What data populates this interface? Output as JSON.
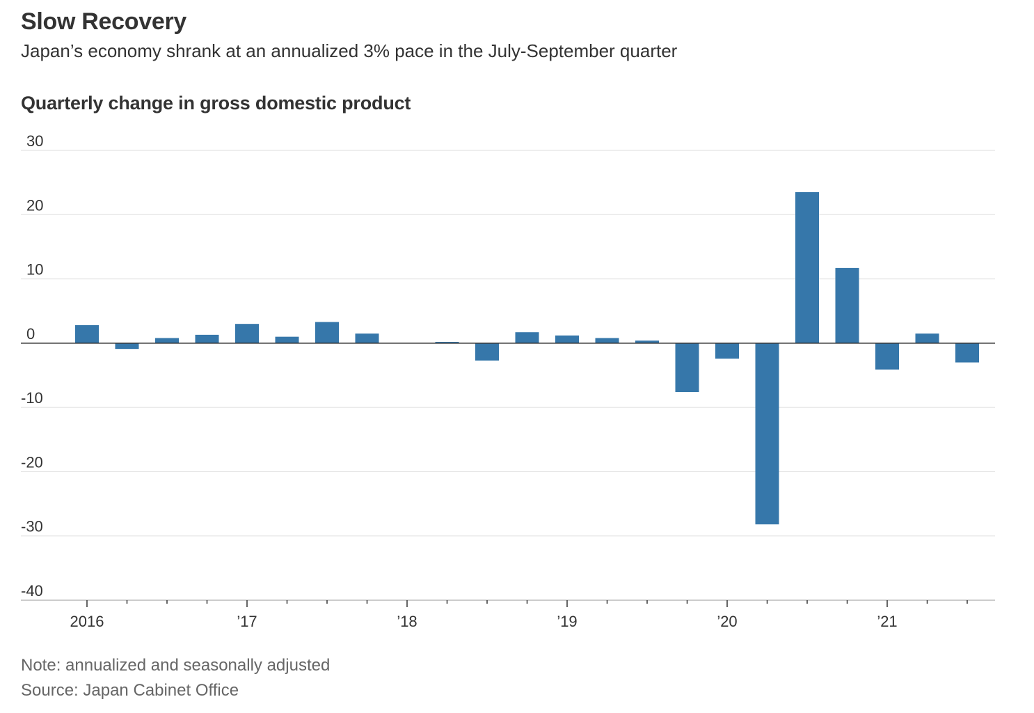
{
  "header": {
    "title": "Slow Recovery",
    "subtitle": "Japan’s economy shrank at an annualized 3% pace in the July-September quarter"
  },
  "chart_data": {
    "type": "bar",
    "title": "Quarterly change in gross domestic product",
    "xlabel": "",
    "ylabel": "",
    "ylim": [
      -40,
      30
    ],
    "yticks": [
      30,
      20,
      10,
      0,
      -10,
      -20,
      -30,
      -40
    ],
    "categories": [
      "2016 Q1",
      "2016 Q2",
      "2016 Q3",
      "2016 Q4",
      "2017 Q1",
      "2017 Q2",
      "2017 Q3",
      "2017 Q4",
      "2018 Q1",
      "2018 Q2",
      "2018 Q3",
      "2018 Q4",
      "2019 Q1",
      "2019 Q2",
      "2019 Q3",
      "2019 Q4",
      "2020 Q1",
      "2020 Q2",
      "2020 Q3",
      "2020 Q4",
      "2021 Q1",
      "2021 Q2",
      "2021 Q3"
    ],
    "values": [
      2.8,
      -0.9,
      0.8,
      1.3,
      3.0,
      1.0,
      3.3,
      1.5,
      0.0,
      0.2,
      -2.7,
      1.7,
      1.2,
      0.8,
      0.4,
      -7.6,
      -2.4,
      -28.2,
      23.5,
      11.7,
      -4.1,
      1.5,
      -3.0
    ],
    "xtick_labels": [
      "2016",
      "’17",
      "’18",
      "’19",
      "’20",
      "’21"
    ],
    "bar_color": "#3677aa"
  },
  "footer": {
    "note": "Note: annualized and seasonally adjusted",
    "source": "Source: Japan Cabinet Office"
  }
}
